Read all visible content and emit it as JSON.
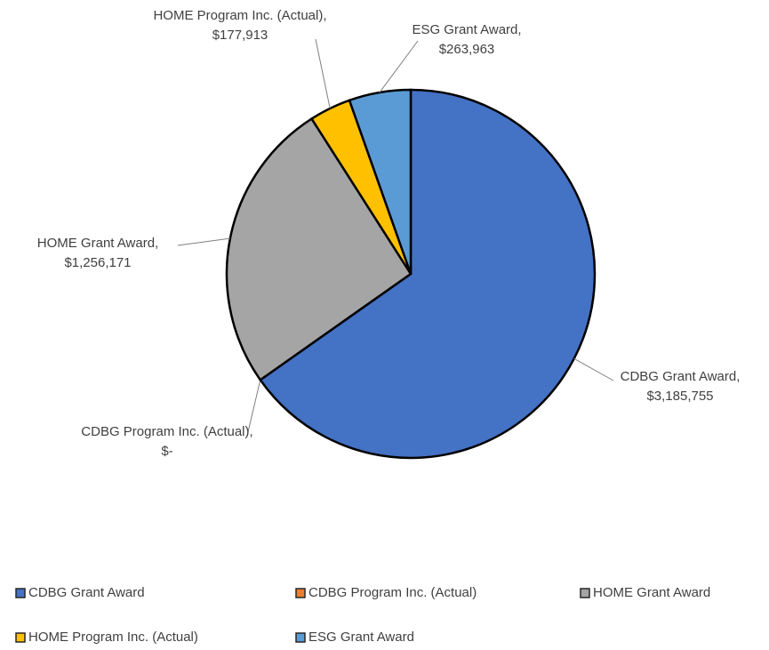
{
  "chart_data": {
    "type": "pie",
    "categories": [
      "CDBG Grant Award",
      "CDBG Program Inc. (Actual)",
      "HOME Grant Award",
      "HOME Program Inc. (Actual)",
      "ESG Grant Award"
    ],
    "values": [
      3185755,
      0,
      1256171,
      177913,
      263963
    ],
    "value_labels": [
      "$3,185,755",
      "$-",
      "$1,256,171",
      "$177,913",
      "$263,963"
    ],
    "label_separator": ",",
    "colors": [
      "#4472c4",
      "#ed7d31",
      "#a5a5a5",
      "#ffc000",
      "#5b9bd5"
    ],
    "legend": "bottom"
  }
}
